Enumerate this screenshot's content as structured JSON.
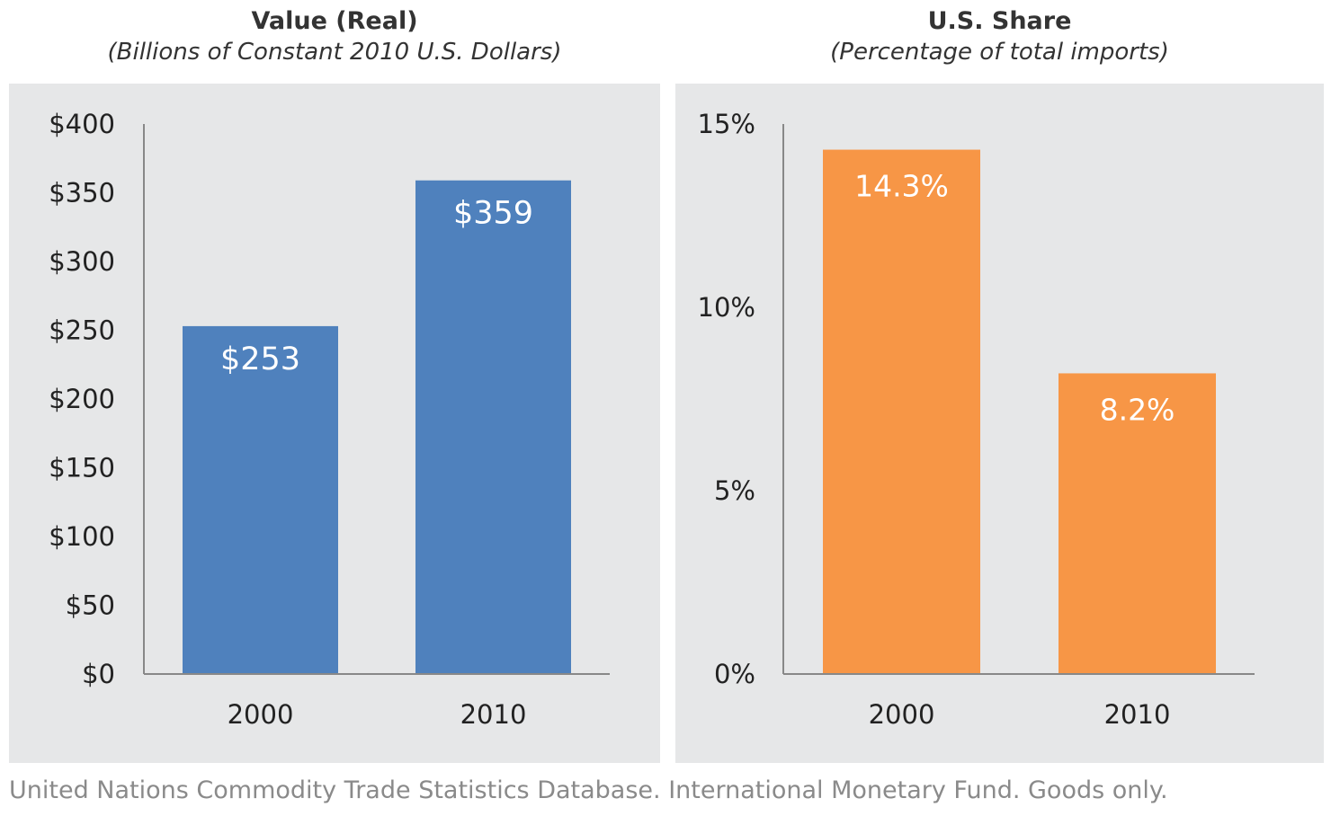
{
  "chart_data": [
    {
      "type": "bar",
      "title": "Value (Real)",
      "subtitle": "(Billions of Constant 2010 U.S. Dollars)",
      "categories": [
        "2000",
        "2010"
      ],
      "values": [
        253,
        359
      ],
      "data_labels": [
        "$253",
        "$359"
      ],
      "ylim": [
        0,
        400
      ],
      "yticks": [
        0,
        50,
        100,
        150,
        200,
        250,
        300,
        350,
        400
      ],
      "ytick_labels": [
        "$0",
        "$50",
        "$100",
        "$150",
        "$200",
        "$250",
        "$300",
        "$350",
        "$400"
      ],
      "color": "#4f81bd",
      "grid": false
    },
    {
      "type": "bar",
      "title": "U.S. Share",
      "subtitle": "(Percentage of total imports)",
      "categories": [
        "2000",
        "2010"
      ],
      "values": [
        14.3,
        8.2
      ],
      "data_labels": [
        "14.3%",
        "8.2%"
      ],
      "ylim": [
        0,
        15
      ],
      "yticks": [
        0,
        5,
        10,
        15
      ],
      "ytick_labels": [
        "0%",
        "5%",
        "10%",
        "15%"
      ],
      "color": "#f79646",
      "grid": false
    }
  ],
  "source": "United Nations Commodity Trade Statistics Database. International Monetary Fund. Goods only."
}
